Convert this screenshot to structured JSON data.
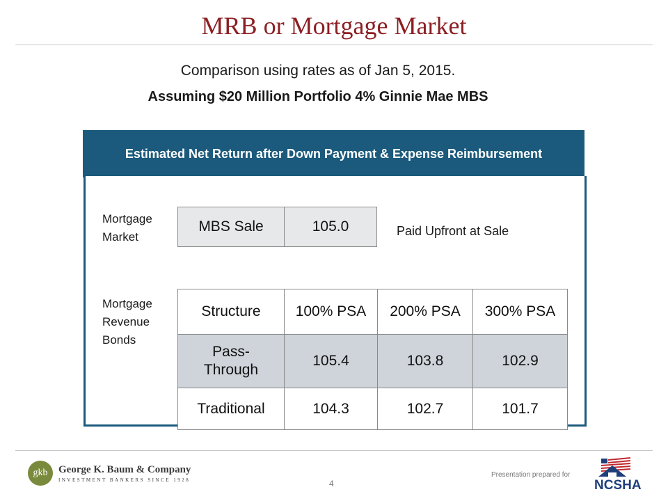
{
  "slide": {
    "title": "MRB or Mortgage Market",
    "subtitle_line1": "Comparison using rates as of Jan 5, 2015.",
    "subtitle_line2": "Assuming $20 Million Portfolio 4% Ginnie Mae MBS"
  },
  "panel": {
    "header": "Estimated Net Return after Down Payment & Expense Reimbursement",
    "mortgage_market": {
      "label_line1": "Mortgage",
      "label_line2": "Market",
      "item": "MBS Sale",
      "value": "105.0",
      "note": "Paid Upfront at Sale"
    },
    "mrb": {
      "label_line1": "Mortgage",
      "label_line2": "Revenue",
      "label_line3": "Bonds",
      "headers": [
        "Structure",
        "100% PSA",
        "200% PSA",
        "300% PSA"
      ],
      "rows": [
        {
          "structure_line1": "Pass-",
          "structure_line2": "Through",
          "values": [
            "105.4",
            "103.8",
            "102.9"
          ]
        },
        {
          "structure": "Traditional",
          "values": [
            "104.3",
            "102.7",
            "101.7"
          ]
        }
      ]
    }
  },
  "footer": {
    "logo_initials": "gkb",
    "logo_name": "George K. Baum & Company",
    "logo_tagline": "INVESTMENT BANKERS SINCE 1928",
    "page_number": "4",
    "prepared_for": "Presentation prepared for",
    "partner_logo_text": "NCSHA"
  },
  "colors": {
    "title": "#8b1f23",
    "band": "#1b5a7c",
    "cell_shade": "#cfd3da",
    "ncsha_red": "#c0282e",
    "ncsha_blue": "#1f3f7a"
  }
}
